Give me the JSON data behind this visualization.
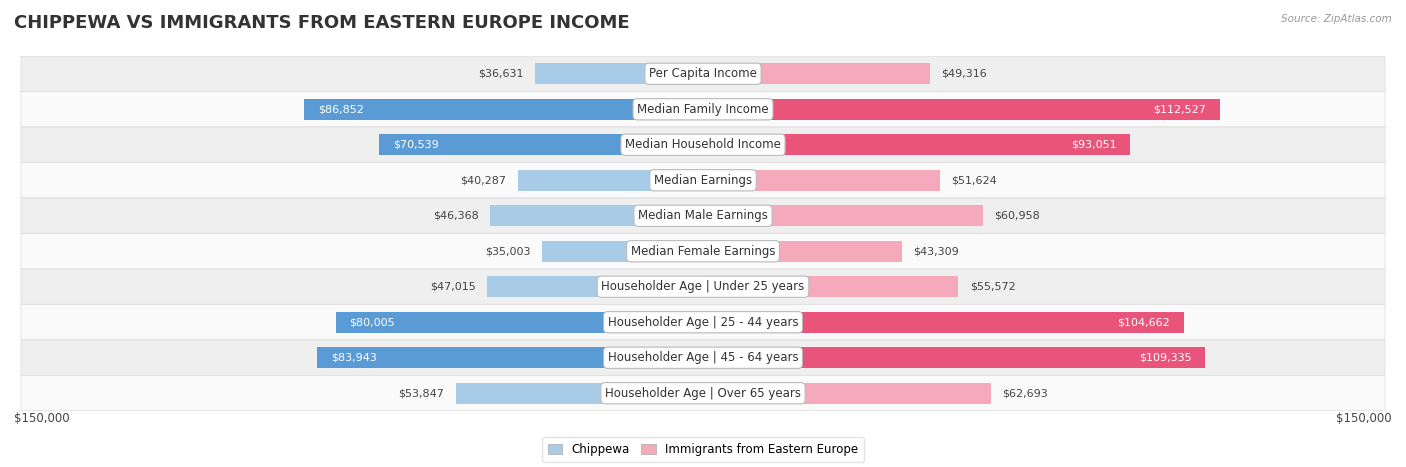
{
  "title": "CHIPPEWA VS IMMIGRANTS FROM EASTERN EUROPE INCOME",
  "source": "Source: ZipAtlas.com",
  "categories": [
    "Per Capita Income",
    "Median Family Income",
    "Median Household Income",
    "Median Earnings",
    "Median Male Earnings",
    "Median Female Earnings",
    "Householder Age | Under 25 years",
    "Householder Age | 25 - 44 years",
    "Householder Age | 45 - 64 years",
    "Householder Age | Over 65 years"
  ],
  "chippewa_values": [
    36631,
    86852,
    70539,
    40287,
    46368,
    35003,
    47015,
    80005,
    83943,
    53847
  ],
  "eastern_europe_values": [
    49316,
    112527,
    93051,
    51624,
    60958,
    43309,
    55572,
    104662,
    109335,
    62693
  ],
  "chippewa_color_light": "#A8CCE8",
  "chippewa_color_strong": "#5B9BD5",
  "eastern_europe_color_light": "#F4AABB",
  "eastern_europe_color_strong": "#E8547A",
  "max_value": 150000,
  "xlabel_left": "$150,000",
  "xlabel_right": "$150,000",
  "legend_chippewa": "Chippewa",
  "legend_eastern": "Immigrants from Eastern Europe",
  "row_bg_colors": [
    "#EFEFEF",
    "#FAFAFA"
  ],
  "bar_height": 0.6,
  "title_fontsize": 13,
  "label_fontsize": 8.5,
  "value_fontsize": 8.0,
  "chippewa_threshold": 60000,
  "eastern_threshold": 85000
}
